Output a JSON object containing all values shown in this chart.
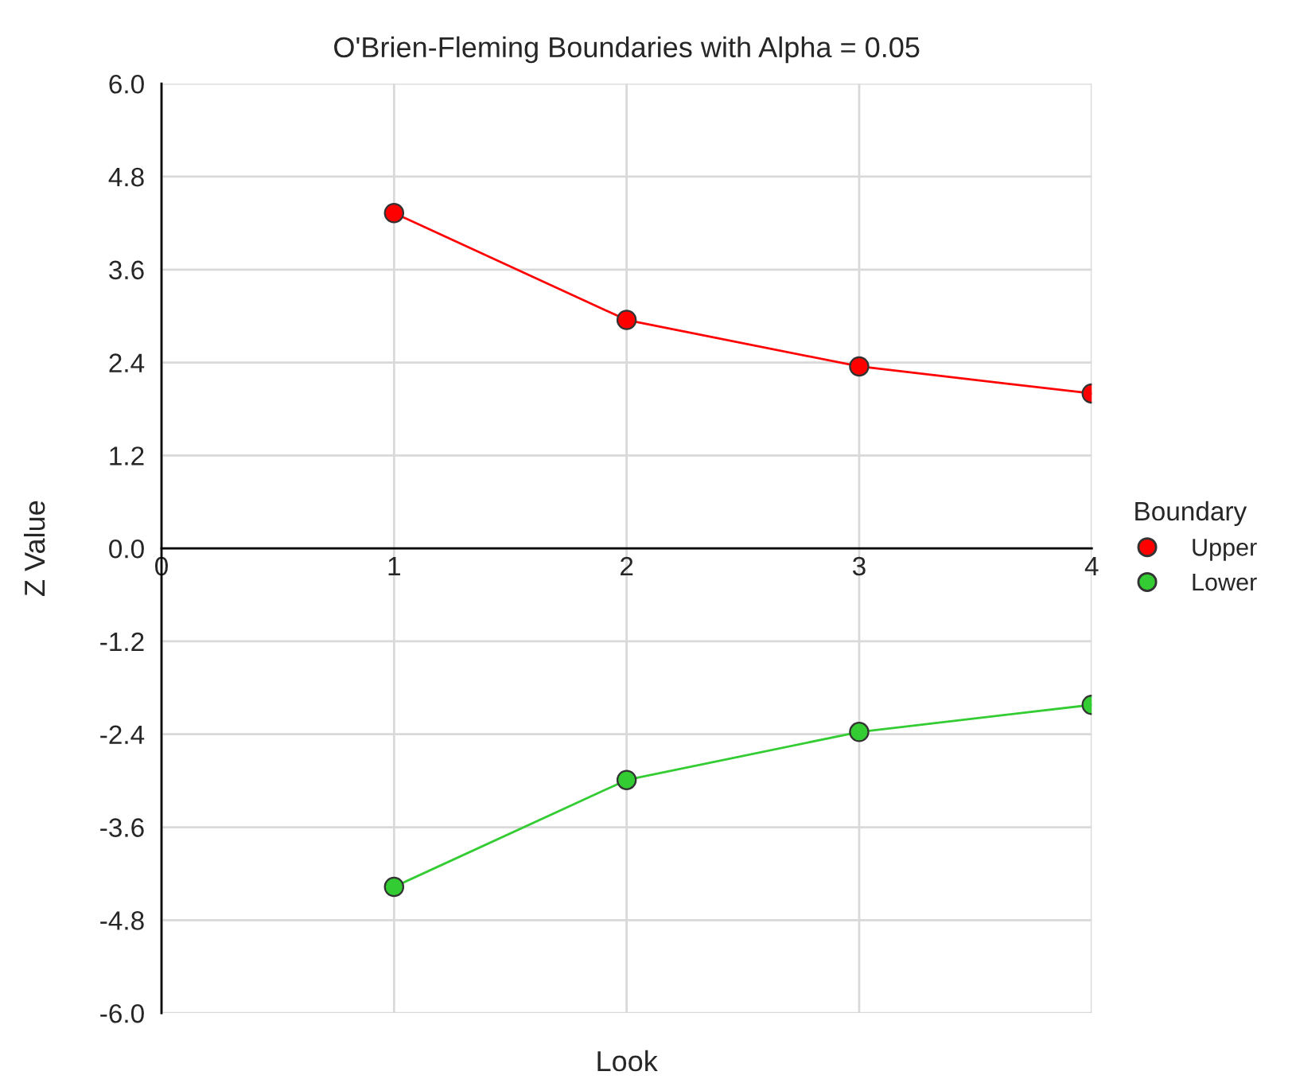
{
  "chart_data": {
    "type": "line",
    "title": "O'Brien-Fleming Boundaries with Alpha = 0.05",
    "xlabel": "Look",
    "ylabel": "Z Value",
    "legend_title": "Boundary",
    "x": [
      1,
      2,
      3,
      4
    ],
    "series": [
      {
        "name": "Upper",
        "color": "#ff0000",
        "values": [
          4.33,
          2.95,
          2.35,
          2.0
        ]
      },
      {
        "name": "Lower",
        "color": "#33cc33",
        "values": [
          -4.37,
          -2.99,
          -2.37,
          -2.02
        ]
      }
    ],
    "xlim": [
      0,
      4
    ],
    "xticks": [
      0,
      1,
      2,
      3,
      4
    ],
    "ylim": [
      -6,
      6
    ],
    "yticks": [
      {
        "value": -6,
        "label": "-6.0"
      },
      {
        "value": -4.8,
        "label": "-4.8"
      },
      {
        "value": -3.6,
        "label": "-3.6"
      },
      {
        "value": -2.4,
        "label": "-2.4"
      },
      {
        "value": -1.2,
        "label": "-1.2"
      },
      {
        "value": 0,
        "label": "0.0"
      },
      {
        "value": 1.2,
        "label": "1.2"
      },
      {
        "value": 2.4,
        "label": "2.4"
      },
      {
        "value": 3.6,
        "label": "3.6"
      },
      {
        "value": 4.8,
        "label": "4.8"
      },
      {
        "value": 6,
        "label": "6.0"
      }
    ],
    "grid": true,
    "legend": "right",
    "marker": "circle",
    "line_style": "solid"
  }
}
